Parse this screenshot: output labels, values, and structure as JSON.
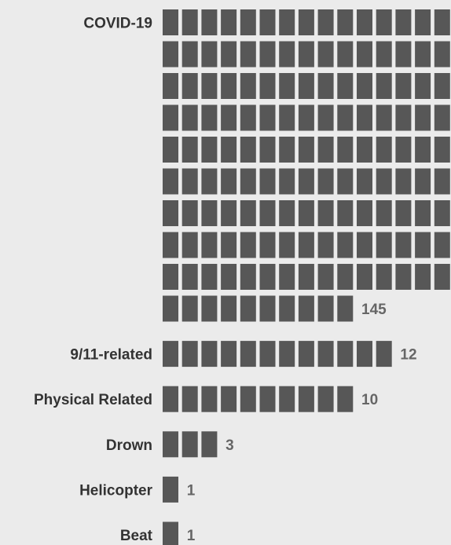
{
  "chart_data": {
    "type": "bar",
    "title": "",
    "xlabel": "",
    "ylabel": "",
    "units_per_square": 1,
    "categories": [
      "COVID-19",
      "9/11-related",
      "Physical Related",
      "Drown",
      "Helicopter",
      "Beat"
    ],
    "values": [
      145,
      12,
      10,
      3,
      1,
      1
    ],
    "value_labels": [
      "145",
      "12",
      "10",
      "3",
      "1",
      "1"
    ],
    "colors": {
      "square": "#575757",
      "category_text": "#333333",
      "value_text": "#666666",
      "background": "#ebebeb"
    },
    "grid": false,
    "legend": "none"
  }
}
